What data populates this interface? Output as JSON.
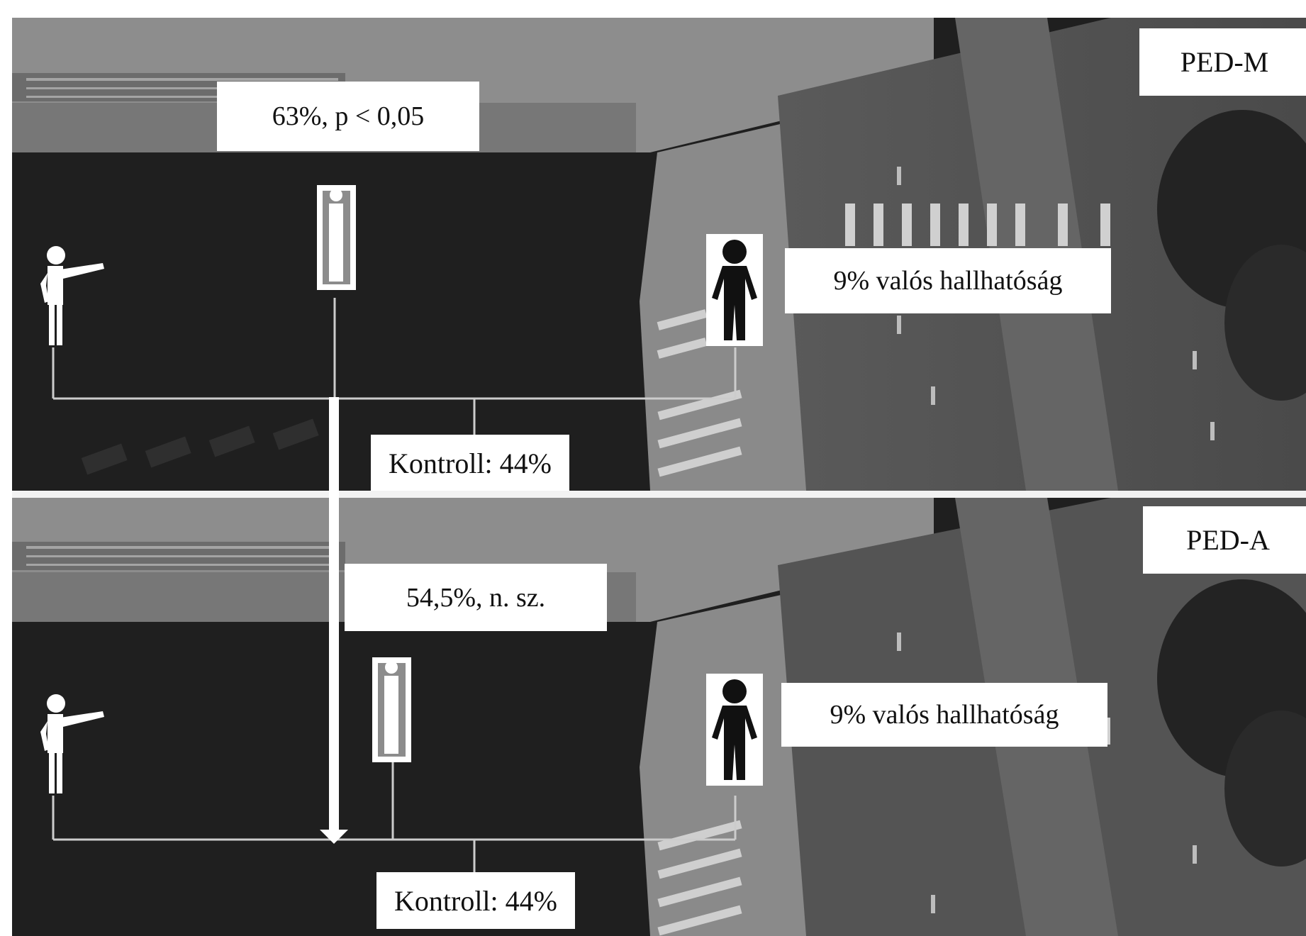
{
  "figure": {
    "panels": [
      {
        "id": "ped-m",
        "tag": "PED-M",
        "result": "63%, p < 0,05",
        "audibility": "9% valós hallhatóság",
        "control": "Kontroll: 44%"
      },
      {
        "id": "ped-a",
        "tag": "PED-A",
        "result": "54,5%, n. sz.",
        "audibility": "9% valós hallhatóság",
        "control": "Kontroll: 44%"
      }
    ],
    "icons": {
      "pointing": "pointing-person-icon",
      "gray": "standing-person-gray-icon",
      "black": "standing-person-black-icon"
    }
  }
}
